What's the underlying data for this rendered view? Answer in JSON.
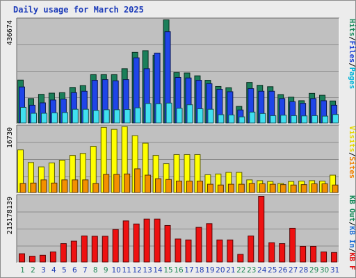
{
  "page_title": "Daily usage for March 2025",
  "legend": {
    "panel1": [
      {
        "text": "Pages",
        "color": "#00b4d8"
      },
      {
        "text": "Files",
        "color": "#1e43d6"
      },
      {
        "text": "Hits",
        "color": "#188a5a"
      }
    ],
    "panel2": [
      {
        "text": "Sites",
        "color": "#f08000"
      },
      {
        "text": "Visits",
        "color": "#e6d800"
      }
    ],
    "panel3": [
      {
        "text": "KB F",
        "color": "#e01010"
      },
      {
        "text": "KB In",
        "color": "#1e6ed6"
      },
      {
        "text": "KB Out",
        "color": "#188a5a"
      }
    ]
  },
  "colors": {
    "hits": "#1b7f5a",
    "files": "#1f45e8",
    "pages": "#40e0f0",
    "visits": "#ffff00",
    "sites": "#f39000",
    "kbf": "#ee1111",
    "weekday_label": "#1e3bb4",
    "weekend_label": "#1e8a55",
    "panel_bg": "#c0c0c0"
  },
  "chart_data": {
    "type": "bar",
    "title": "Daily usage for March 2025",
    "categories": [
      "1",
      "2",
      "3",
      "4",
      "5",
      "6",
      "7",
      "8",
      "9",
      "10",
      "11",
      "12",
      "13",
      "14",
      "15",
      "16",
      "17",
      "18",
      "19",
      "20",
      "21",
      "22",
      "23",
      "24",
      "25",
      "26",
      "27",
      "28",
      "29",
      "30",
      "31"
    ],
    "weekend_days": [
      "1",
      "2",
      "8",
      "9",
      "15",
      "16",
      "22",
      "23",
      "29",
      "30"
    ],
    "panels": [
      {
        "name": "hits-files-pages",
        "max_label": "436674",
        "ylim": [
          0,
          436674
        ],
        "series": [
          {
            "name": "Hits",
            "values": [
              181000,
              103000,
              121000,
              126000,
              128000,
              150000,
              158000,
              204000,
              204000,
              204000,
              229000,
              298000,
              305000,
              286000,
              435000,
              213000,
              211000,
              199000,
              180000,
              154000,
              149000,
              70000,
              171000,
              159000,
              153000,
              120000,
              109000,
              94000,
              125000,
              117000,
              93000
            ]
          },
          {
            "name": "Files",
            "values": [
              152000,
              75000,
              85000,
              97000,
              101000,
              128000,
              134000,
              180000,
              183000,
              178000,
              183000,
              275000,
              229000,
              295000,
              385000,
              192000,
              190000,
              180000,
              166000,
              142000,
              132000,
              55000,
              145000,
              134000,
              134000,
              103000,
              90000,
              83000,
              103000,
              94000,
              75000
            ]
          },
          {
            "name": "Pages",
            "values": [
              66000,
              41000,
              41000,
              43000,
              44000,
              58000,
              58000,
              53000,
              56000,
              56000,
              57000,
              64000,
              82000,
              81000,
              84000,
              62000,
              77000,
              60000,
              58000,
              35000,
              34000,
              26000,
              46000,
              40000,
              31000,
              33000,
              31000,
              30000,
              31000,
              29000,
              36000
            ]
          }
        ]
      },
      {
        "name": "visits-sites",
        "max_label": "16730",
        "ylim": [
          0,
          16730
        ],
        "series": [
          {
            "name": "Visits",
            "values": [
              10800,
              7600,
              6500,
              7500,
              8200,
              9400,
              9900,
              11700,
              16500,
              16000,
              16700,
              14400,
              12500,
              9400,
              7300,
              9600,
              9600,
              9600,
              4500,
              4700,
              5100,
              5100,
              3200,
              3000,
              2800,
              2300,
              2800,
              2900,
              3000,
              2900,
              4400
            ]
          },
          {
            "name": "Sites",
            "values": [
              2300,
              2400,
              3200,
              2400,
              3200,
              3200,
              3200,
              2300,
              4600,
              4600,
              4700,
              6000,
              4400,
              3500,
              3300,
              2900,
              2900,
              2900,
              2100,
              1900,
              2100,
              2100,
              2300,
              2200,
              2100,
              2000,
              1900,
              2000,
              2200,
              2200,
              1900
            ]
          }
        ]
      },
      {
        "name": "kbytes",
        "max_label": "215178139",
        "ylim": [
          0,
          215178139
        ],
        "series": [
          {
            "name": "KB F",
            "values": [
              27000000,
              19000000,
              22000000,
              33000000,
              60000000,
              68000000,
              85000000,
              84000000,
              84000000,
              106000000,
              134000000,
              124000000,
              140000000,
              140000000,
              119000000,
              75000000,
              72000000,
              113000000,
              125000000,
              72000000,
              72000000,
              25000000,
              85000000,
              214000000,
              63000000,
              60000000,
              110000000,
              51000000,
              51000000,
              33000000,
              31000000
            ]
          }
        ]
      }
    ]
  }
}
